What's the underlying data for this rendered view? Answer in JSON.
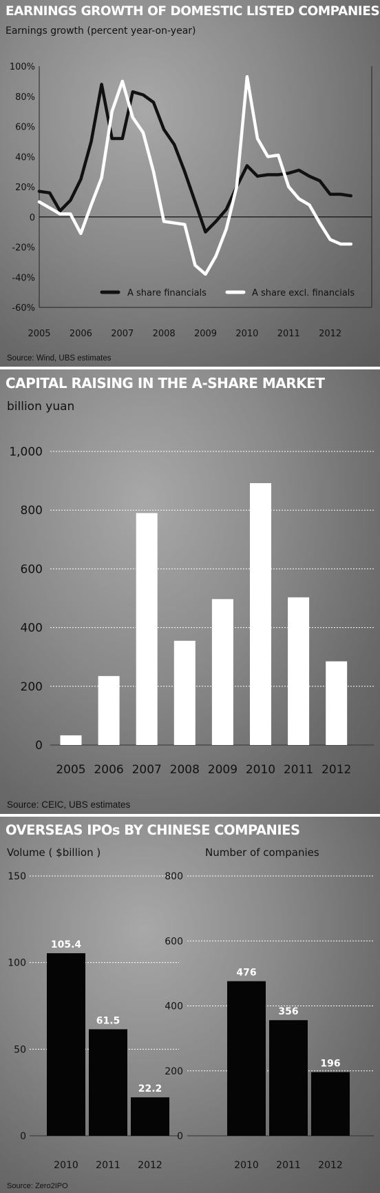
{
  "chart_data": [
    {
      "type": "line",
      "title": "EARNINGS GROWTH OF DOMESTIC LISTED COMPANIES",
      "subtitle": "Earnings growth (percent year-on-year)",
      "source": "Source: Wind, UBS estimates",
      "x_ticks": [
        "2005",
        "2006",
        "2007",
        "2008",
        "2009",
        "2010",
        "2011",
        "2012"
      ],
      "y_ticks": [
        "100%",
        "80%",
        "60%",
        "40%",
        "20%",
        "0",
        "-20%",
        "-40%",
        "-60%"
      ],
      "ylim": [
        -60,
        100
      ],
      "xlim": [
        2005.0,
        2012.75
      ],
      "legend_position": "bottom-right",
      "series": [
        {
          "name": "A share financials",
          "color": "#111111",
          "x": [
            2005.0,
            2005.25,
            2005.5,
            2005.75,
            2006.0,
            2006.25,
            2006.5,
            2006.75,
            2007.0,
            2007.25,
            2007.5,
            2007.75,
            2008.0,
            2008.25,
            2008.5,
            2008.75,
            2009.0,
            2009.25,
            2009.5,
            2009.75,
            2010.0,
            2010.25,
            2010.5,
            2010.75,
            2011.0,
            2011.25,
            2011.5,
            2011.75,
            2012.0,
            2012.25,
            2012.5
          ],
          "values": [
            17,
            16,
            4,
            11,
            25,
            50,
            88,
            52,
            52,
            83,
            81,
            76,
            58,
            48,
            30,
            10,
            -10,
            -3,
            5,
            20,
            34,
            27,
            28,
            28,
            29,
            31,
            27,
            24,
            15,
            15,
            14
          ]
        },
        {
          "name": "A share excl. financials",
          "color": "#ffffff",
          "x": [
            2005.0,
            2005.25,
            2005.5,
            2005.75,
            2006.0,
            2006.25,
            2006.5,
            2006.75,
            2007.0,
            2007.25,
            2007.5,
            2007.75,
            2008.0,
            2008.25,
            2008.5,
            2008.75,
            2009.0,
            2009.25,
            2009.5,
            2009.75,
            2010.0,
            2010.25,
            2010.5,
            2010.75,
            2011.0,
            2011.25,
            2011.5,
            2011.75,
            2012.0,
            2012.25,
            2012.5
          ],
          "values": [
            10,
            6,
            2,
            2,
            -11,
            8,
            26,
            70,
            90,
            66,
            56,
            30,
            -3,
            -4,
            -5,
            -32,
            -38,
            -26,
            -8,
            20,
            93,
            52,
            40,
            41,
            20,
            12,
            8,
            -4,
            -15,
            -18,
            -18
          ]
        }
      ]
    },
    {
      "type": "bar",
      "title": "CAPITAL RAISING IN THE A-SHARE MARKET",
      "ylabel": "billion yuan",
      "source": "Source: CEIC, UBS estimates",
      "categories": [
        "2005",
        "2006",
        "2007",
        "2008",
        "2009",
        "2010",
        "2011",
        "2012"
      ],
      "values": [
        33,
        235,
        790,
        355,
        497,
        892,
        503,
        285
      ],
      "y_ticks": [
        "1,000",
        "800",
        "600",
        "400",
        "200",
        "0"
      ],
      "ylim": [
        0,
        1000
      ],
      "bar_color": "#ffffff"
    },
    {
      "type": "bar",
      "title": "OVERSEAS IPOs BY CHINESE COMPANIES",
      "ylabel": "Volume ( $billion )",
      "categories": [
        "2010",
        "2011",
        "2012"
      ],
      "values": [
        105.4,
        61.5,
        22.2
      ],
      "data_labels": [
        "105.4",
        "61.5",
        "22.2"
      ],
      "y_ticks": [
        "150",
        "100",
        "50",
        "0"
      ],
      "ylim": [
        0,
        150
      ],
      "bar_color": "#050505"
    },
    {
      "type": "bar",
      "ylabel": "Number of companies",
      "categories": [
        "2010",
        "2011",
        "2012"
      ],
      "values": [
        476,
        356,
        196
      ],
      "data_labels": [
        "476",
        "356",
        "196"
      ],
      "y_ticks": [
        "800",
        "600",
        "400",
        "200",
        "0"
      ],
      "ylim": [
        0,
        800
      ],
      "bar_color": "#050505",
      "source": "Source: Zero2IPO"
    }
  ]
}
